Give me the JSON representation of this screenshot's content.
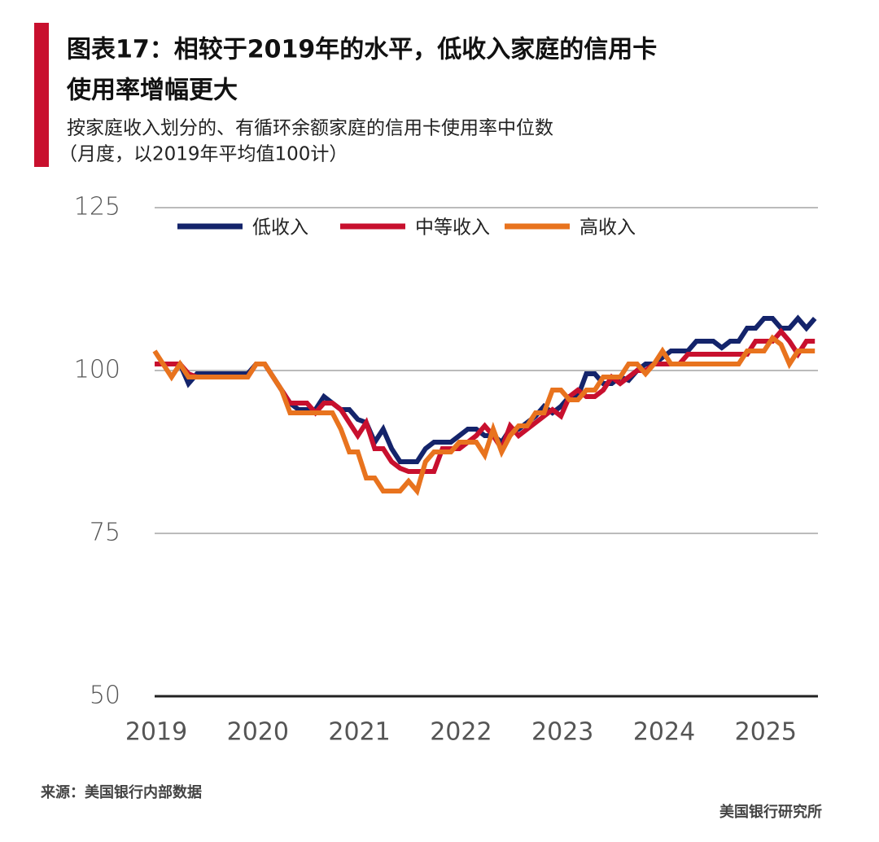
{
  "chart_data": {
    "type": "line",
    "title": [
      "图表17：相较于2019年的水平，低收入家庭的信用卡",
      "使用率增幅更大"
    ],
    "subtitle": [
      "按家庭收入划分的、有循环余额家庭的信用卡使用率中位数",
      "（月度，以2019年平均值100计）"
    ],
    "source": "来源：美国银行内部数据",
    "brand": "美国银行研究所",
    "categories": [
      "2019",
      null,
      null,
      null,
      null,
      null,
      null,
      null,
      null,
      null,
      null,
      null,
      "2020",
      null,
      null,
      null,
      null,
      null,
      null,
      null,
      null,
      null,
      null,
      null,
      "2021",
      null,
      null,
      null,
      null,
      null,
      null,
      null,
      null,
      null,
      null,
      null,
      "2022",
      null,
      null,
      null,
      null,
      null,
      null,
      null,
      null,
      null,
      null,
      null,
      "2023",
      null,
      null,
      null,
      null,
      null,
      null,
      null,
      null,
      null,
      null,
      null,
      "2024",
      null,
      null,
      null,
      null,
      null,
      null,
      null,
      null,
      null,
      null,
      null,
      "2025",
      null,
      null,
      null,
      null,
      null,
      null
    ],
    "series": [
      {
        "name": "低收入",
        "color": "#14246b",
        "values": [
          101,
          101,
          101,
          101,
          98,
          99.5,
          99.5,
          99.5,
          99.5,
          99.5,
          99.5,
          99.5,
          101,
          101,
          99,
          97,
          95,
          94,
          94,
          94,
          96,
          95,
          94,
          94,
          92.5,
          92,
          89,
          91,
          88,
          86,
          86,
          86,
          88,
          89,
          89,
          89,
          90,
          91,
          91,
          90,
          90,
          89,
          91,
          91,
          92,
          93,
          94.5,
          93.5,
          94.5,
          96,
          96,
          99.5,
          99.5,
          98,
          98,
          99,
          98.5,
          100,
          101,
          101,
          102,
          103,
          103,
          103,
          104.5,
          104.5,
          104.5,
          103.5,
          104.5,
          104.5,
          106.5,
          106.5,
          108,
          108,
          106.5,
          106.5,
          108,
          106.5,
          108
        ]
      },
      {
        "name": "中等收入",
        "color": "#c8102e",
        "values": [
          101,
          101,
          101,
          101,
          99.5,
          99,
          99,
          99,
          99,
          99,
          99,
          99,
          101,
          101,
          99,
          97,
          95,
          95,
          95,
          93.5,
          95,
          95,
          94,
          92,
          90,
          92,
          88,
          88,
          86,
          85,
          84.5,
          84.5,
          84.5,
          84.5,
          88,
          88,
          88,
          89,
          90,
          91.5,
          90,
          88,
          91.5,
          90,
          91,
          92,
          93,
          94,
          93,
          96,
          97,
          96,
          96,
          97,
          99,
          98,
          99,
          100,
          100,
          101,
          101,
          101,
          101,
          102.5,
          102.5,
          102.5,
          102.5,
          102.5,
          102.5,
          102.5,
          102.5,
          104.5,
          104.5,
          104.5,
          106,
          104.5,
          102.5,
          104.5,
          104.5
        ]
      },
      {
        "name": "高收入",
        "color": "#e8731e",
        "values": [
          103,
          101,
          99,
          101,
          99,
          99,
          99,
          99,
          99,
          99,
          99,
          99,
          101,
          101,
          99,
          97,
          93.5,
          93.5,
          93.5,
          93.5,
          93.5,
          93.5,
          91,
          87.5,
          87.5,
          83.5,
          83.5,
          81.5,
          81.5,
          81.5,
          83,
          81.5,
          86,
          87.5,
          87.5,
          87.5,
          89,
          89,
          89,
          87,
          91,
          87.5,
          90,
          91.5,
          91.5,
          93.5,
          93.5,
          97,
          97,
          95.5,
          95.5,
          97,
          97,
          99,
          99,
          99,
          101,
          101,
          99.5,
          101,
          103,
          101,
          101,
          101,
          101,
          101,
          101,
          101,
          101,
          101,
          103,
          103,
          103,
          105,
          104,
          101,
          103,
          103,
          103
        ]
      }
    ],
    "ylim": [
      50,
      125
    ],
    "yticks": [
      50,
      75,
      100,
      125
    ],
    "grid": true,
    "legend": "top"
  }
}
